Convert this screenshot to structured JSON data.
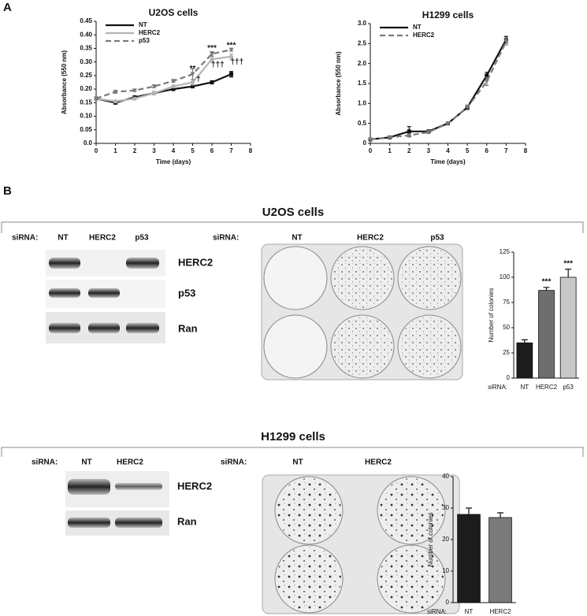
{
  "figure": {
    "panel_labels": [
      "A",
      "B"
    ],
    "sections": [
      {
        "title": "U2OS cells",
        "blot": {
          "prefix": "siRNA:",
          "lanes": [
            "NT",
            "HERC2",
            "p53"
          ],
          "bands": [
            "HERC2",
            "p53",
            "Ran"
          ]
        },
        "plates": {
          "prefix": "siRNA:",
          "lanes": [
            "NT",
            "HERC2",
            "p53"
          ]
        }
      },
      {
        "title": "H1299 cells",
        "blot": {
          "prefix": "siRNA:",
          "lanes": [
            "NT",
            "HERC2"
          ],
          "bands": [
            "HERC2",
            "Ran"
          ]
        },
        "plates": {
          "prefix": "siRNA:",
          "lanes": [
            "NT",
            "HERC2"
          ]
        }
      }
    ]
  },
  "chart_data": [
    {
      "type": "line",
      "title": "U2OS cells",
      "xlabel": "Time (days)",
      "ylabel": "Absorbance (550 nm)",
      "x": [
        0,
        1,
        2,
        3,
        4,
        5,
        6,
        7
      ],
      "series": [
        {
          "name": "NT",
          "color": "#111111",
          "marker": "square",
          "dash": false,
          "values": [
            0.165,
            0.15,
            0.17,
            0.185,
            0.2,
            0.21,
            0.225,
            0.255
          ],
          "errors": [
            0.005,
            0.005,
            0.004,
            0.004,
            0.005,
            0.005,
            0.006,
            0.01
          ]
        },
        {
          "name": "HERC2",
          "color": "#b4b4b4",
          "marker": "circle",
          "dash": false,
          "values": [
            0.165,
            0.155,
            0.165,
            0.185,
            0.21,
            0.225,
            0.31,
            0.32
          ],
          "errors": [
            0.004,
            0.004,
            0.004,
            0.005,
            0.005,
            0.01,
            0.01,
            0.01
          ]
        },
        {
          "name": "p53",
          "color": "#7a7a7a",
          "marker": "triangle",
          "dash": true,
          "values": [
            0.165,
            0.19,
            0.195,
            0.21,
            0.23,
            0.255,
            0.33,
            0.345
          ],
          "errors": [
            0.004,
            0.005,
            0.004,
            0.005,
            0.005,
            0.02,
            0.008,
            0.005
          ]
        }
      ],
      "annotations": [
        {
          "text": "**",
          "x": 5,
          "y": 0.275
        },
        {
          "text": "***",
          "x": 6,
          "y": 0.35
        },
        {
          "text": "***",
          "x": 7,
          "y": 0.36
        },
        {
          "text": "†",
          "x": 5.3,
          "y": 0.235
        },
        {
          "text": "†††",
          "x": 6.3,
          "y": 0.29
        },
        {
          "text": "†††",
          "x": 7.3,
          "y": 0.3
        }
      ],
      "xlim": [
        0,
        8
      ],
      "xticks": [
        0,
        1,
        2,
        3,
        4,
        5,
        6,
        7,
        8
      ],
      "ylim": [
        0,
        0.45
      ],
      "yticks": [
        {
          "value": 0,
          "label": "0.0"
        },
        0.05,
        {
          "value": 0.1,
          "label": "0.10"
        },
        0.15,
        {
          "value": 0.2,
          "label": "0.20"
        },
        0.25,
        {
          "value": 0.3,
          "label": "0.30"
        },
        0.35,
        {
          "value": 0.4,
          "label": "0.40"
        },
        0.45
      ],
      "legend": "upper left"
    },
    {
      "type": "line",
      "title": "H1299 cells",
      "xlabel": "Time (days)",
      "ylabel": "Absorbance (550 nm)",
      "x": [
        0,
        1,
        2,
        3,
        4,
        5,
        6,
        7
      ],
      "series": [
        {
          "name": "NT",
          "color": "#111111",
          "marker": "square",
          "dash": false,
          "values": [
            0.1,
            0.15,
            0.3,
            0.3,
            0.5,
            0.9,
            1.7,
            2.6
          ],
          "errors": [
            0.02,
            0.02,
            0.12,
            0.03,
            0.03,
            0.05,
            0.08,
            0.08
          ]
        },
        {
          "name": "HERC2",
          "color": "#7a7a7a",
          "marker": "triangle",
          "dash": true,
          "values": [
            0.1,
            0.15,
            0.2,
            0.28,
            0.5,
            0.9,
            1.55,
            2.55
          ],
          "errors": [
            0.02,
            0.02,
            0.04,
            0.03,
            0.03,
            0.06,
            0.1,
            0.08
          ]
        }
      ],
      "xlim": [
        0,
        8
      ],
      "xticks": [
        0,
        1,
        2,
        3,
        4,
        5,
        6,
        7,
        8
      ],
      "ylim": [
        0,
        3
      ],
      "yticks": [
        0,
        0.5,
        {
          "value": 1,
          "label": "1.0"
        },
        1.5,
        {
          "value": 2,
          "label": "2.0"
        },
        2.5,
        {
          "value": 3,
          "label": "3.0"
        }
      ],
      "legend": "upper left"
    },
    {
      "type": "bar",
      "xlabel": "siRNA:",
      "ylabel": "Number of colonies",
      "categories": [
        "NT",
        "HERC2",
        "p53"
      ],
      "series": [
        {
          "colors": [
            "#1c1c1c",
            "#6e6e6e",
            "#c8c8c8"
          ],
          "values": [
            35,
            87,
            100
          ],
          "errors": [
            3,
            3,
            8
          ]
        }
      ],
      "bar_labels": [
        null,
        "***",
        "***"
      ],
      "ylim": [
        0,
        125
      ],
      "yticks": [
        0,
        25,
        50,
        75,
        100,
        125
      ]
    },
    {
      "type": "bar",
      "xlabel": "siRNA:",
      "ylabel": "Number of colonies",
      "categories": [
        "NT",
        "HERC2"
      ],
      "series": [
        {
          "colors": [
            "#1c1c1c",
            "#7a7a7a"
          ],
          "values": [
            28,
            27
          ],
          "errors": [
            2,
            1.5
          ]
        }
      ],
      "ylim": [
        0,
        40
      ],
      "yticks": [
        0,
        10,
        20,
        30,
        40
      ]
    }
  ]
}
